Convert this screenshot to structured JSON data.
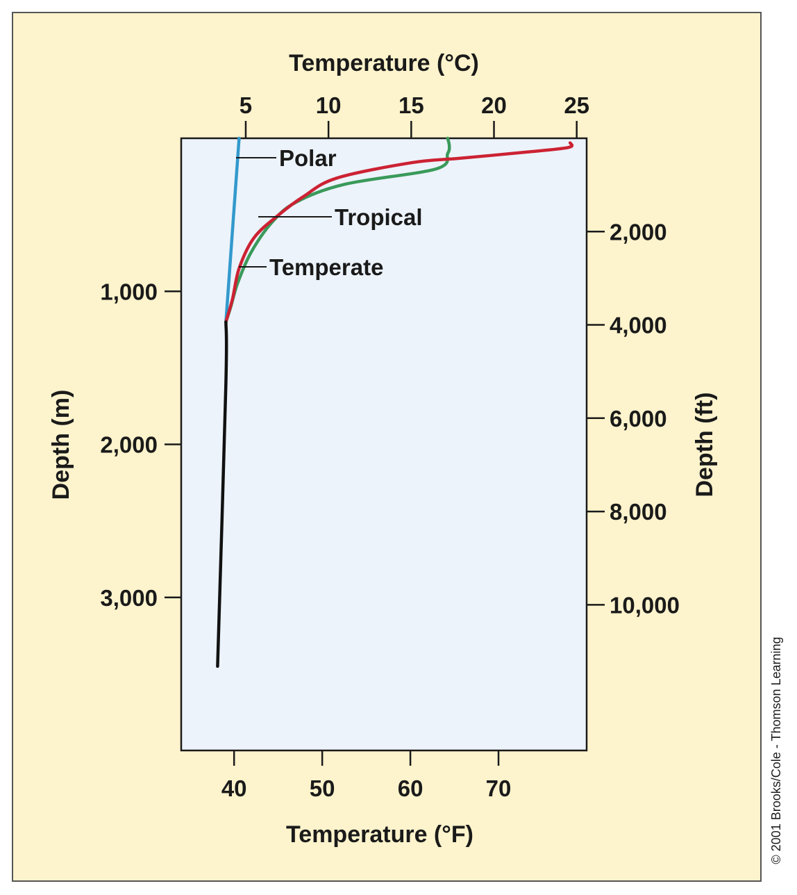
{
  "chart_data": {
    "type": "line",
    "title": "",
    "top_axis": {
      "label": "Temperature (°C)",
      "ticks": [
        5,
        10,
        15,
        20,
        25
      ],
      "range": [
        1.1,
        25.6
      ]
    },
    "bottom_axis": {
      "label": "Temperature (°F)",
      "ticks": [
        40,
        50,
        60,
        70
      ],
      "range": [
        34,
        80
      ]
    },
    "left_axis": {
      "label": "Depth (m)",
      "ticks": [
        "1,000",
        "2,000",
        "3,000"
      ],
      "tick_values": [
        1000,
        2000,
        3000
      ],
      "range": [
        0,
        4000
      ],
      "inverted": true
    },
    "right_axis": {
      "label": "Depth (ft)",
      "ticks": [
        "2,000",
        "4,000",
        "6,000",
        "8,000",
        "10,000"
      ],
      "tick_values": [
        2000,
        4000,
        6000,
        8000,
        10000
      ],
      "range": [
        0,
        13123
      ]
    },
    "series": [
      {
        "name": "Tropical",
        "color": "#cc2233",
        "points": [
          [
            24.6,
            30
          ],
          [
            24.5,
            60
          ],
          [
            22,
            90
          ],
          [
            18,
            130
          ],
          [
            15,
            160
          ],
          [
            10.5,
            260
          ],
          [
            8.5,
            380
          ],
          [
            7,
            500
          ],
          [
            5.5,
            650
          ],
          [
            4.6,
            850
          ],
          [
            4.2,
            1050
          ],
          [
            3.8,
            1200
          ]
        ]
      },
      {
        "name": "Temperate",
        "color": "#3a9a5a",
        "points": [
          [
            17.2,
            0
          ],
          [
            17.3,
            50
          ],
          [
            17.2,
            100
          ],
          [
            16.5,
            200
          ],
          [
            11,
            300
          ],
          [
            8,
            420
          ],
          [
            6.5,
            560
          ],
          [
            5.3,
            750
          ],
          [
            4.5,
            950
          ],
          [
            4.1,
            1100
          ],
          [
            3.8,
            1200
          ]
        ]
      },
      {
        "name": "Polar",
        "color": "#3399cc",
        "points": [
          [
            4.6,
            0
          ],
          [
            3.8,
            1200
          ]
        ]
      },
      {
        "name": "",
        "color": "#111111",
        "points": [
          [
            3.8,
            1200
          ],
          [
            3.8,
            1600
          ],
          [
            3.3,
            3450
          ]
        ]
      }
    ],
    "grid": false,
    "background_color": "#fdf3cc",
    "plot_background_color": "#ecf3fb"
  },
  "credit": "© 2001 Brooks/Cole - Thomson Learning"
}
